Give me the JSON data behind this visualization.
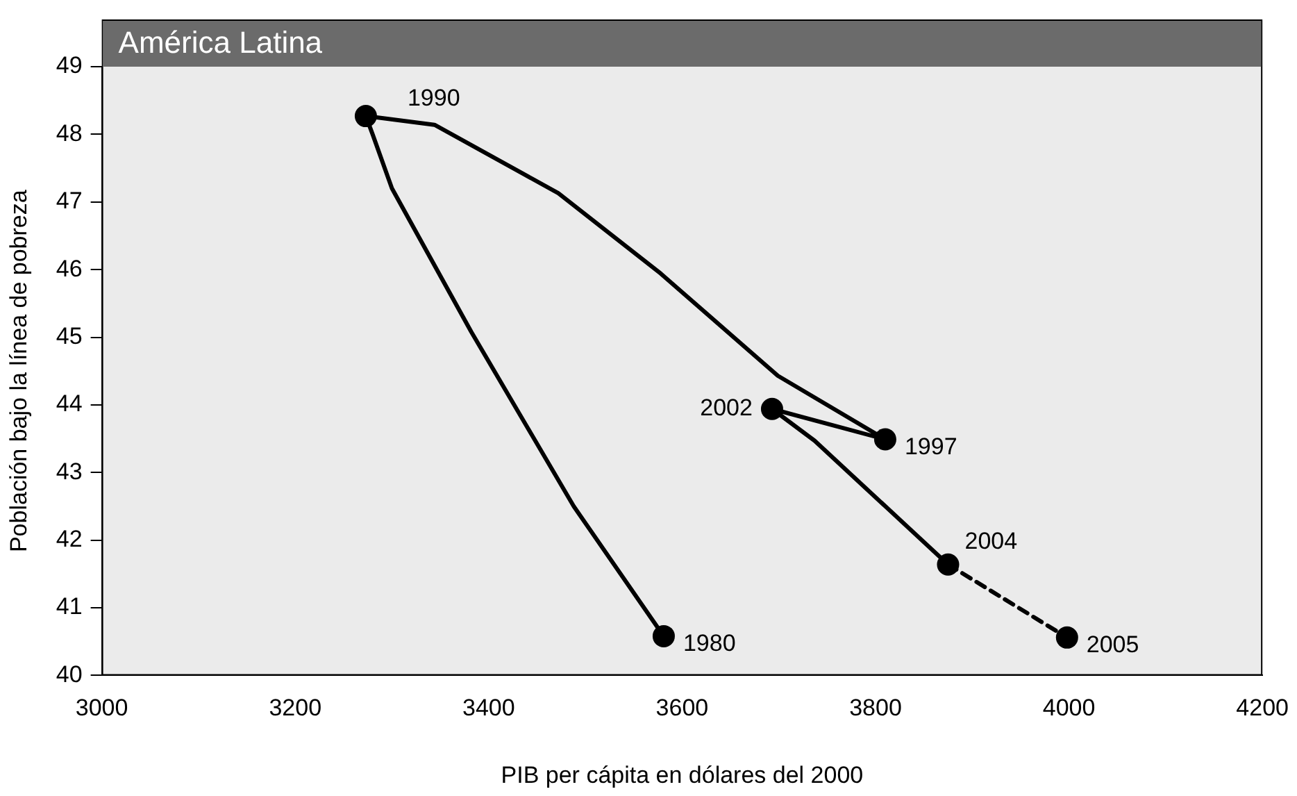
{
  "chart_data": {
    "type": "line",
    "title": "América Latina",
    "xlabel": "PIB per cápita en dólares del 2000",
    "ylabel": "Población bajo la línea de pobreza",
    "xlim": [
      3000,
      4200
    ],
    "xticks": [
      3000,
      3200,
      3400,
      3600,
      3800,
      4000,
      4200
    ],
    "ylim": [
      40,
      49
    ],
    "yticks": [
      40,
      41,
      42,
      43,
      44,
      45,
      46,
      47,
      48,
      49
    ],
    "grid": false,
    "legend": false,
    "series": [
      {
        "type": "line",
        "color": "#000000",
        "marker": "none",
        "line_style": "solid",
        "x": [
          3581,
          3488,
          3382,
          3300,
          3280,
          3273,
          3344,
          3472,
          3578,
          3699,
          3810,
          3693,
          3737,
          3875
        ],
        "values": [
          40.58,
          42.5,
          45.08,
          47.2,
          48.0,
          48.27,
          48.14,
          47.13,
          45.94,
          44.43,
          43.49,
          43.94,
          43.47,
          41.64
        ]
      },
      {
        "type": "line",
        "color": "#000000",
        "marker": "none",
        "line_style": "dashed",
        "x": [
          3875,
          3998
        ],
        "values": [
          41.64,
          40.56
        ]
      },
      {
        "type": "scatter",
        "color": "#000000",
        "marker": "circle",
        "x": [
          3581,
          3273,
          3810,
          3693,
          3875,
          3998
        ],
        "values": [
          40.58,
          48.27,
          43.49,
          43.94,
          41.64,
          40.56
        ]
      }
    ],
    "annotations": [
      {
        "text": "1980",
        "x": 3581,
        "y": 40.58
      },
      {
        "text": "1990",
        "x": 3273,
        "y": 48.27
      },
      {
        "text": "1997",
        "x": 3810,
        "y": 43.49
      },
      {
        "text": "2002",
        "x": 3693,
        "y": 43.94
      },
      {
        "text": "2004",
        "x": 3875,
        "y": 41.64
      },
      {
        "text": "2005",
        "x": 3998,
        "y": 40.56
      }
    ]
  }
}
